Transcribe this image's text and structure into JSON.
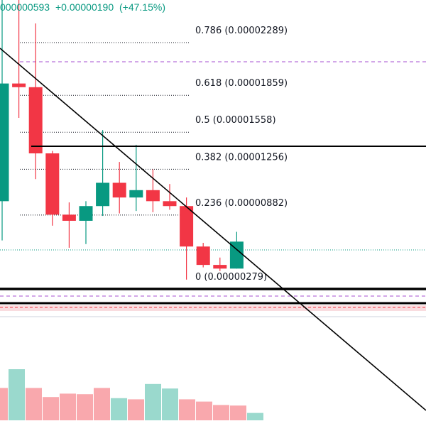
{
  "header": {
    "price": "000000593",
    "change": "+0.00000190",
    "change_pct": "(+47.15%)"
  },
  "colors": {
    "up": "#089981",
    "down": "#f23645",
    "up_volume": "#9ad9cd",
    "down_volume": "#f9a8ad",
    "trendline": "#000000",
    "fib_line": "#131722",
    "dashed_purple": "#a64fd1",
    "band_pink": "#f6cdd2"
  },
  "chart_data": {
    "type": "candlestick",
    "fib_levels": [
      {
        "level": "0.786",
        "price": 2.289e-05,
        "label": "0.786 (0.00002289)"
      },
      {
        "level": "0.618",
        "price": 1.859e-05,
        "label": "0.618 (0.00001859)"
      },
      {
        "level": "0.5",
        "price": 1.558e-05,
        "label": "0.5 (0.00001558)"
      },
      {
        "level": "0.382",
        "price": 1.256e-05,
        "label": "0.382 (0.00001256)"
      },
      {
        "level": "0.236",
        "price": 8.82e-06,
        "label": "0.236 (0.00000882)"
      },
      {
        "level": "0",
        "price": 2.79e-06,
        "label": "0 (0.00000279)"
      }
    ],
    "candles": [
      {
        "open": 9.2e-06,
        "high": 2.69e-05,
        "low": 6e-06,
        "close": 1.88e-05,
        "volume": 0.62
      },
      {
        "open": 1.88e-05,
        "high": 2.99e-05,
        "low": 1.6e-05,
        "close": 1.85e-05,
        "volume": 0.43
      },
      {
        "open": 1.85e-05,
        "high": 2.37e-05,
        "low": 1.1e-05,
        "close": 1.31e-05,
        "volume": 0.3
      },
      {
        "open": 1.31e-05,
        "high": 1.33e-05,
        "low": 7.2e-06,
        "close": 8.1e-06,
        "volume": 0.3
      },
      {
        "open": 8.1e-06,
        "high": 9.1e-06,
        "low": 5.4e-06,
        "close": 7.6e-06,
        "volume": 0.3
      },
      {
        "open": 7.6e-06,
        "high": 9.2e-06,
        "low": 5.7e-06,
        "close": 8.8e-06,
        "volume": 0.31
      },
      {
        "open": 8.8e-06,
        "high": 1.5e-05,
        "low": 8e-06,
        "close": 1.07e-05,
        "volume": 0.36
      },
      {
        "open": 1.07e-05,
        "high": 1.24e-05,
        "low": 8.2e-06,
        "close": 9.5e-06,
        "volume": 0.3
      },
      {
        "open": 9.5e-06,
        "high": 1.38e-05,
        "low": 8.4e-06,
        "close": 1.01e-05,
        "volume": 0.3
      },
      {
        "open": 1.01e-05,
        "high": 1.18e-05,
        "low": 8.3e-06,
        "close": 9.2e-06,
        "volume": 0.3
      },
      {
        "open": 9.2e-06,
        "high": 1.06e-05,
        "low": 8.5e-06,
        "close": 8.8e-06,
        "volume": 0.25
      },
      {
        "open": 8.8e-06,
        "high": 9.5e-06,
        "low": 2.8e-06,
        "close": 5.5e-06,
        "volume": 0.22
      },
      {
        "open": 5.5e-06,
        "high": 5.8e-06,
        "low": 3.8e-06,
        "close": 4e-06,
        "volume": 0.22
      },
      {
        "open": 4e-06,
        "high": 4.6e-06,
        "low": 3.5e-06,
        "close": 3.7e-06,
        "volume": 0.2
      },
      {
        "open": 3.7e-06,
        "high": 6.7e-06,
        "low": 3.7e-06,
        "close": 5.9e-06,
        "volume": 0.18
      }
    ],
    "volume_bars": [
      {
        "direction": "down",
        "value": 0.57
      },
      {
        "direction": "up",
        "value": 0.9
      },
      {
        "direction": "down",
        "value": 0.57
      },
      {
        "direction": "down",
        "value": 0.41
      },
      {
        "direction": "down",
        "value": 0.47
      },
      {
        "direction": "down",
        "value": 0.46
      },
      {
        "direction": "down",
        "value": 0.57
      },
      {
        "direction": "up",
        "value": 0.39
      },
      {
        "direction": "down",
        "value": 0.37
      },
      {
        "direction": "up",
        "value": 0.64
      },
      {
        "direction": "up",
        "value": 0.56
      },
      {
        "direction": "down",
        "value": 0.37
      },
      {
        "direction": "down",
        "value": 0.33
      },
      {
        "direction": "down",
        "value": 0.27
      },
      {
        "direction": "down",
        "value": 0.26
      },
      {
        "direction": "up",
        "value": 0.13
      }
    ]
  }
}
